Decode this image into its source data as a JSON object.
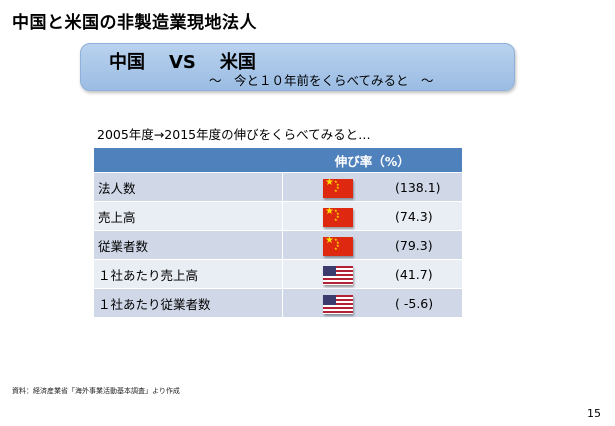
{
  "slide": {
    "title": "中国と米国の非製造業現地法人",
    "page_number": "15"
  },
  "banner": {
    "left": "中国",
    "vs": "VS",
    "right": "米国",
    "subtitle": "～　今と１０年前をくらべてみると　～"
  },
  "intro": "2005年度→2015年度の伸びをくらべてみると…",
  "table": {
    "header_label": "",
    "header_value": "伸び率（%）",
    "rows": [
      {
        "label": "法人数",
        "flag": "china-flag",
        "value": "(138.1)"
      },
      {
        "label": "売上高",
        "flag": "china-flag",
        "value": "(74.3)"
      },
      {
        "label": "従業者数",
        "flag": "china-flag",
        "value": "(79.3)"
      },
      {
        "label": "１社あたり売上高",
        "flag": "usa-flag",
        "value": "(41.7)"
      },
      {
        "label": "１社あたり従業者数",
        "flag": "usa-flag",
        "value": "( -5.6)"
      }
    ]
  },
  "source": "資料：経済産業省「海外事業活動基本調査」より作成",
  "colors": {
    "banner": "#a9c6e8",
    "table_header": "#4f81bd",
    "row_dark": "#d0d8e8",
    "row_light": "#e9edf4",
    "china_red": "#de2910",
    "usa_blue": "#3c3b6e"
  }
}
